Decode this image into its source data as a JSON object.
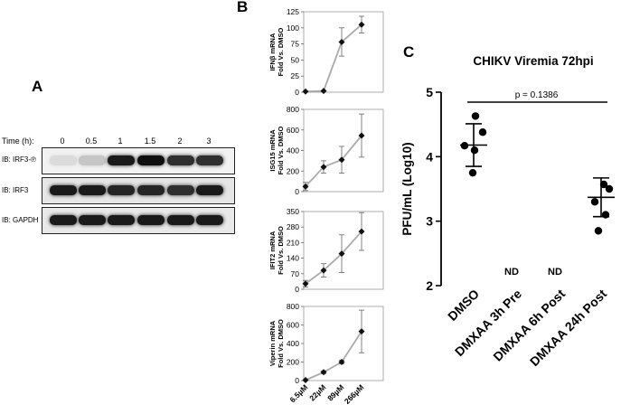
{
  "panelA": {
    "letter": "A",
    "time_label": "Time (h):",
    "lanes": [
      "0",
      "0.5",
      "1",
      "1.5",
      "2",
      "3"
    ],
    "rows": [
      "IB: IRF3-℗",
      "IB: IRF3",
      "IB: GAPDH"
    ],
    "irf3p_intensity": [
      0.05,
      0.15,
      0.95,
      1.0,
      0.85,
      0.85
    ],
    "irf3_intensity": [
      0.95,
      0.95,
      0.9,
      0.9,
      0.85,
      0.95
    ],
    "gapdh_intensity": [
      0.95,
      0.95,
      0.95,
      0.95,
      0.95,
      0.95
    ]
  },
  "panelB": {
    "letter": "B",
    "x_labels": [
      "6.5µM",
      "22µM",
      "89µM",
      "266µM"
    ]
  },
  "panelC": {
    "letter": "C",
    "title": "CHIKV Viremia 72hpi",
    "ylabel": "PFU/mL (Log10)",
    "pvalue": "p = 0.1386",
    "nd_label": "ND",
    "categories": [
      "DMSO",
      "DMXAA 3h Pre",
      "DMXAA 6h Post",
      "DMXAA 24h Post"
    ]
  },
  "chart_data": [
    {
      "type": "line",
      "x": [
        "6.5µM",
        "22µM",
        "89µM",
        "266µM"
      ],
      "ylabel": "IFNβ mRNA Fold Vs. DMSO",
      "ylim": [
        0,
        125
      ],
      "yticks": [
        0,
        25,
        50,
        75,
        100,
        125
      ],
      "series": [
        {
          "values": [
            1,
            2,
            78,
            105
          ],
          "errors": [
            0,
            0,
            22,
            13
          ]
        }
      ]
    },
    {
      "type": "line",
      "x": [
        "6.5µM",
        "22µM",
        "89µM",
        "266µM"
      ],
      "ylabel": "ISG15 mRNA Fold Vs. DMSO",
      "ylim": [
        0,
        800
      ],
      "yticks": [
        0,
        200,
        400,
        600,
        800
      ],
      "series": [
        {
          "values": [
            50,
            240,
            310,
            545
          ],
          "errors": [
            40,
            60,
            130,
            210
          ]
        }
      ]
    },
    {
      "type": "line",
      "x": [
        "6.5µM",
        "22µM",
        "89µM",
        "266µM"
      ],
      "ylabel": "IFIT2 mRNA Fold Vs. DMSO",
      "ylim": [
        0,
        350
      ],
      "yticks": [
        0,
        70,
        140,
        210,
        280,
        350
      ],
      "series": [
        {
          "values": [
            25,
            85,
            160,
            260
          ],
          "errors": [
            15,
            30,
            85,
            85
          ]
        }
      ]
    },
    {
      "type": "line",
      "x": [
        "6.5µM",
        "22µM",
        "89µM",
        "266µM"
      ],
      "ylabel": "Viperin mRNA Fold Vs. DMSO",
      "ylim": [
        0,
        800
      ],
      "yticks": [
        0,
        200,
        400,
        600,
        800
      ],
      "series": [
        {
          "values": [
            5,
            90,
            200,
            530
          ],
          "errors": [
            0,
            15,
            20,
            230
          ]
        }
      ]
    },
    {
      "type": "scatter",
      "title": "CHIKV Viremia 72hpi",
      "ylabel": "PFU/mL (Log10)",
      "ylim": [
        2,
        5
      ],
      "yticks": [
        2,
        3,
        4,
        5
      ],
      "categories": [
        "DMSO",
        "DMXAA 3h Pre",
        "DMXAA 6h Post",
        "DMXAA 24h Post"
      ],
      "points": [
        [
          4.63,
          4.38,
          4.17,
          4.1,
          3.75
        ],
        [],
        [],
        [
          3.57,
          3.5,
          3.3,
          3.1,
          2.85
        ]
      ],
      "mean": [
        4.18,
        null,
        null,
        3.37
      ],
      "sem": [
        0.33,
        null,
        null,
        0.3
      ],
      "annotations": [
        "p = 0.1386",
        "ND",
        "ND"
      ]
    }
  ]
}
